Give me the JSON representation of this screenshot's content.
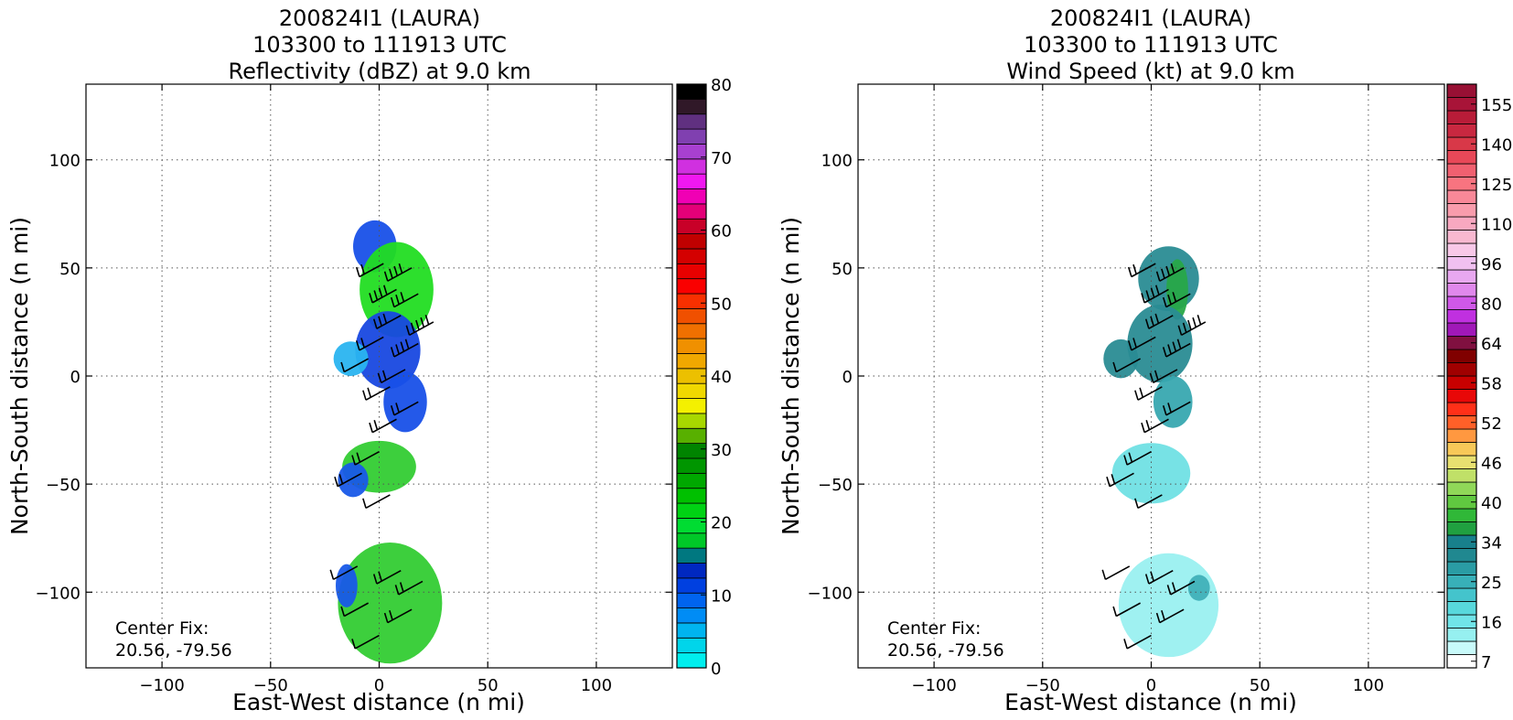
{
  "chart_data": [
    {
      "type": "heatmap",
      "title_lines": [
        "200824I1 (LAURA)",
        "103300 to 111913 UTC",
        "Reflectivity (dBZ) at 9.0 km"
      ],
      "xlabel": "East-West distance (n mi)",
      "ylabel": "North-South distance (n mi)",
      "xlim": [
        -135,
        135
      ],
      "ylim": [
        -135,
        135
      ],
      "xticks": [
        -100,
        -50,
        0,
        50,
        100
      ],
      "yticks": [
        -100,
        -50,
        0,
        50,
        100
      ],
      "xtick_labels": [
        "−100",
        "−50",
        "0",
        "50",
        "100"
      ],
      "ytick_labels": [
        "−100",
        "−50",
        "0",
        "50",
        "100"
      ],
      "grid": true,
      "annotation": [
        "Center Fix:",
        "20.56, -79.56"
      ],
      "colorbar": {
        "min": 0,
        "max": 80,
        "ticks": [
          0,
          10,
          20,
          30,
          40,
          50,
          60,
          70,
          80
        ],
        "tick_labels": [
          "0",
          "10",
          "20",
          "30",
          "40",
          "50",
          "60",
          "70",
          "80"
        ],
        "colors": [
          "#00eeee",
          "#00d5ea",
          "#00b4f0",
          "#008cf5",
          "#0064f0",
          "#0040e0",
          "#0028c0",
          "#007880",
          "#00c828",
          "#00dc32",
          "#00d214",
          "#00c000",
          "#00a800",
          "#009600",
          "#008400",
          "#58b000",
          "#a8d800",
          "#f4f000",
          "#f0d800",
          "#ecc000",
          "#f0a800",
          "#f09000",
          "#f07000",
          "#f05000",
          "#f83000",
          "#fa0000",
          "#e80000",
          "#d40000",
          "#c00000",
          "#c80028",
          "#e40078",
          "#f000b4",
          "#f018f0",
          "#d030e0",
          "#a840d0",
          "#8040b0",
          "#603080",
          "#301828",
          "#000000"
        ]
      },
      "regions": [
        {
          "x": -2,
          "y": 60,
          "rx": 10,
          "ry": 12,
          "color": "#1850e8"
        },
        {
          "x": 8,
          "y": 40,
          "rx": 17,
          "ry": 22,
          "color": "#22dd22"
        },
        {
          "x": 4,
          "y": 12,
          "rx": 15,
          "ry": 18,
          "color": "#1848e0"
        },
        {
          "x": -13,
          "y": 8,
          "rx": 8,
          "ry": 8,
          "color": "#2ab4f0"
        },
        {
          "x": 12,
          "y": -12,
          "rx": 10,
          "ry": 14,
          "color": "#1850e8"
        },
        {
          "x": 0,
          "y": -42,
          "rx": 17,
          "ry": 12,
          "color": "#33cc33"
        },
        {
          "x": -12,
          "y": -48,
          "rx": 7,
          "ry": 8,
          "color": "#1858e8"
        },
        {
          "x": 5,
          "y": -105,
          "rx": 24,
          "ry": 28,
          "color": "#33cc33"
        },
        {
          "x": -15,
          "y": -97,
          "rx": 5,
          "ry": 10,
          "color": "#1858e8"
        }
      ],
      "barbs": [
        {
          "x": 2,
          "y": 52,
          "speed": 20
        },
        {
          "x": 15,
          "y": 50,
          "speed": 40
        },
        {
          "x": 8,
          "y": 40,
          "speed": 40
        },
        {
          "x": 18,
          "y": 38,
          "speed": 30
        },
        {
          "x": 10,
          "y": 28,
          "speed": 30
        },
        {
          "x": 25,
          "y": 25,
          "speed": 50
        },
        {
          "x": 2,
          "y": 18,
          "speed": 20
        },
        {
          "x": 18,
          "y": 15,
          "speed": 40
        },
        {
          "x": -5,
          "y": 8,
          "speed": 10
        },
        {
          "x": 12,
          "y": 3,
          "speed": 20
        },
        {
          "x": 5,
          "y": -5,
          "speed": 20
        },
        {
          "x": 18,
          "y": -12,
          "speed": 20
        },
        {
          "x": 8,
          "y": -20,
          "speed": 20
        },
        {
          "x": 0,
          "y": -35,
          "speed": 20
        },
        {
          "x": -8,
          "y": -45,
          "speed": 20
        },
        {
          "x": 5,
          "y": -55,
          "speed": 10
        },
        {
          "x": -10,
          "y": -88,
          "speed": 10
        },
        {
          "x": 10,
          "y": -90,
          "speed": 20
        },
        {
          "x": -5,
          "y": -105,
          "speed": 10
        },
        {
          "x": 15,
          "y": -108,
          "speed": 20
        },
        {
          "x": 0,
          "y": -120,
          "speed": 10
        },
        {
          "x": 20,
          "y": -95,
          "speed": 20
        }
      ]
    },
    {
      "type": "heatmap",
      "title_lines": [
        "200824I1 (LAURA)",
        "103300 to 111913 UTC",
        "Wind Speed (kt) at 9.0 km"
      ],
      "xlabel": "East-West distance (n mi)",
      "ylabel": "North-South distance (n mi)",
      "xlim": [
        -135,
        135
      ],
      "ylim": [
        -135,
        135
      ],
      "xticks": [
        -100,
        -50,
        0,
        50,
        100
      ],
      "yticks": [
        -100,
        -50,
        0,
        50,
        100
      ],
      "xtick_labels": [
        "−100",
        "−50",
        "0",
        "50",
        "100"
      ],
      "ytick_labels": [
        "−100",
        "−50",
        "0",
        "50",
        "100"
      ],
      "grid": true,
      "annotation": [
        "Center Fix:",
        "20.56, -79.56"
      ],
      "colorbar": {
        "ticks": [
          7,
          16,
          25,
          34,
          40,
          46,
          52,
          58,
          64,
          80,
          96,
          110,
          125,
          140,
          155
        ],
        "tick_labels": [
          "7",
          "16",
          "25",
          "34",
          "40",
          "46",
          "52",
          "58",
          "64",
          "80",
          "96",
          "110",
          "125",
          "140",
          "155"
        ],
        "tick_index": [
          0.5,
          3.5,
          6.5,
          9.5,
          12.5,
          15.5,
          18.5,
          21.5,
          24.5,
          27.5,
          30.5,
          33.5,
          36.5,
          39.5,
          42.5
        ],
        "colors": [
          "#ffffff",
          "#c8fafa",
          "#96f0f0",
          "#70e4e8",
          "#58d8dc",
          "#44c4cc",
          "#38b0b8",
          "#2a9ca4",
          "#208890",
          "#18808c",
          "#20a040",
          "#30b838",
          "#60c840",
          "#90d858",
          "#c0e068",
          "#e8e070",
          "#f8c858",
          "#ff9840",
          "#ff6028",
          "#ff3018",
          "#e80808",
          "#c80000",
          "#a00000",
          "#800000",
          "#801040",
          "#a018b8",
          "#c030e0",
          "#d058e8",
          "#e088ec",
          "#e8a8f0",
          "#f0c0f0",
          "#f8c8e8",
          "#f8b8d0",
          "#f8a8c0",
          "#f89cac",
          "#f88898",
          "#f87480",
          "#f06070",
          "#e84858",
          "#d83848",
          "#c82840",
          "#b81c38",
          "#a81438",
          "#981034"
        ]
      },
      "regions": [
        {
          "x": 8,
          "y": 45,
          "rx": 14,
          "ry": 15,
          "color": "#2a8c94"
        },
        {
          "x": 12,
          "y": 40,
          "rx": 5,
          "ry": 14,
          "color": "#28a848"
        },
        {
          "x": 4,
          "y": 15,
          "rx": 15,
          "ry": 18,
          "color": "#2a8c94"
        },
        {
          "x": -14,
          "y": 8,
          "rx": 8,
          "ry": 9,
          "color": "#2a8c94"
        },
        {
          "x": 10,
          "y": -12,
          "rx": 9,
          "ry": 12,
          "color": "#38a8b0"
        },
        {
          "x": 0,
          "y": -45,
          "rx": 18,
          "ry": 14,
          "color": "#70e0e4"
        },
        {
          "x": 8,
          "y": -106,
          "rx": 23,
          "ry": 24,
          "color": "#9af0f0"
        },
        {
          "x": 22,
          "y": -98,
          "rx": 5,
          "ry": 6,
          "color": "#40b0b8"
        }
      ],
      "barbs": [
        {
          "x": 2,
          "y": 52,
          "speed": 20
        },
        {
          "x": 15,
          "y": 50,
          "speed": 40
        },
        {
          "x": 8,
          "y": 40,
          "speed": 40
        },
        {
          "x": 18,
          "y": 38,
          "speed": 30
        },
        {
          "x": 10,
          "y": 28,
          "speed": 30
        },
        {
          "x": 25,
          "y": 25,
          "speed": 50
        },
        {
          "x": 2,
          "y": 18,
          "speed": 20
        },
        {
          "x": 18,
          "y": 15,
          "speed": 40
        },
        {
          "x": -5,
          "y": 8,
          "speed": 10
        },
        {
          "x": 12,
          "y": 3,
          "speed": 20
        },
        {
          "x": 5,
          "y": -5,
          "speed": 20
        },
        {
          "x": 18,
          "y": -12,
          "speed": 20
        },
        {
          "x": 8,
          "y": -20,
          "speed": 20
        },
        {
          "x": 0,
          "y": -35,
          "speed": 20
        },
        {
          "x": -8,
          "y": -45,
          "speed": 20
        },
        {
          "x": 5,
          "y": -55,
          "speed": 10
        },
        {
          "x": -10,
          "y": -88,
          "speed": 10
        },
        {
          "x": 10,
          "y": -90,
          "speed": 20
        },
        {
          "x": -5,
          "y": -105,
          "speed": 10
        },
        {
          "x": 15,
          "y": -108,
          "speed": 20
        },
        {
          "x": 0,
          "y": -120,
          "speed": 10
        },
        {
          "x": 20,
          "y": -95,
          "speed": 20
        }
      ]
    }
  ]
}
